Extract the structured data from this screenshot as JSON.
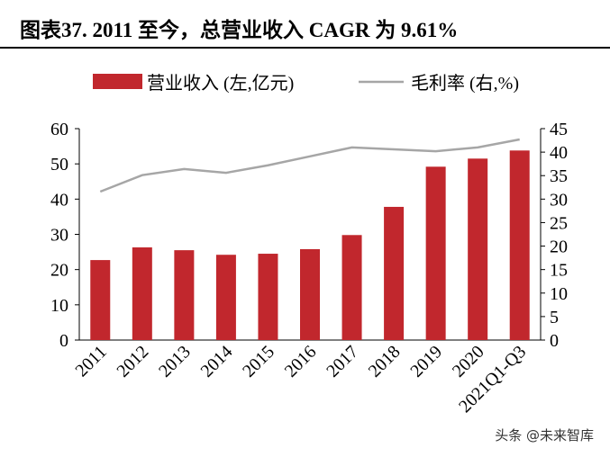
{
  "title": "图表37. 2011 至今，总营业收入 CAGR 为 9.61%",
  "watermark": "头条 @未来智库",
  "chart_data": {
    "type": "bar+line",
    "title": "图表37. 2011 至今，总营业收入 CAGR 为 9.61%",
    "categories": [
      "2011",
      "2012",
      "2013",
      "2014",
      "2015",
      "2016",
      "2017",
      "2018",
      "2019",
      "2020",
      "2021Q1-Q3"
    ],
    "series": [
      {
        "name": "营业收入 (左,亿元)",
        "type": "bar",
        "axis": "left",
        "color": "#C1272D",
        "values": [
          22.7,
          26.3,
          25.5,
          24.2,
          24.5,
          25.8,
          29.8,
          37.8,
          49.2,
          51.5,
          53.8
        ]
      },
      {
        "name": "毛利率 (右,%)",
        "type": "line",
        "axis": "right",
        "color": "#A6A6A6",
        "values": [
          31.6,
          35.1,
          36.4,
          35.6,
          37.2,
          39.1,
          41.0,
          40.6,
          40.2,
          41.0,
          42.7
        ]
      }
    ],
    "left_axis": {
      "range": [
        0,
        60
      ],
      "ticks": [
        0,
        10,
        20,
        30,
        40,
        50,
        60
      ]
    },
    "right_axis": {
      "range": [
        0,
        45
      ],
      "ticks": [
        0,
        5,
        10,
        15,
        20,
        25,
        30,
        35,
        40,
        45
      ]
    },
    "grid": false,
    "legend": "top"
  }
}
